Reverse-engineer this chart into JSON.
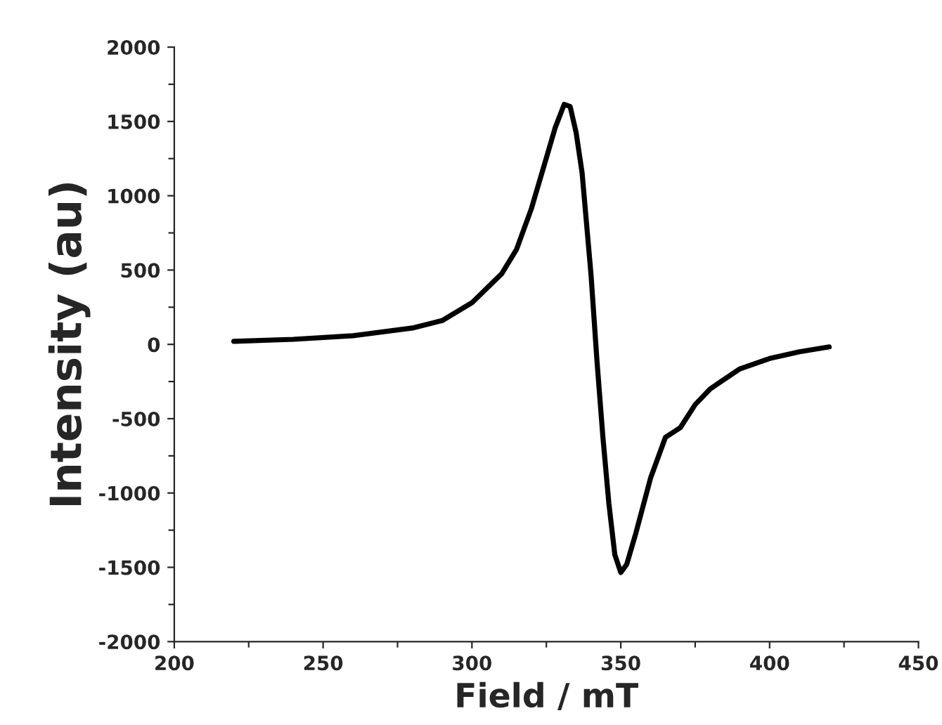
{
  "chart_data": {
    "type": "line",
    "xlabel": "Field / mT",
    "ylabel": "Intensity (au)",
    "xlim": [
      200,
      450
    ],
    "ylim": [
      -2000,
      2000
    ],
    "xticks": [
      200,
      {
        "value": 225,
        "label": null
      },
      250,
      {
        "value": 275,
        "label": null
      },
      300,
      {
        "value": 325,
        "label": null
      },
      350,
      {
        "value": 375,
        "label": null
      },
      400,
      {
        "value": 425,
        "label": null
      },
      450
    ],
    "yticks": [
      -2000,
      {
        "value": -1750,
        "label": null
      },
      -1500,
      {
        "value": -1250,
        "label": null
      },
      -1000,
      {
        "value": -750,
        "label": null
      },
      -500,
      {
        "value": -250,
        "label": null
      },
      0,
      {
        "value": 250,
        "label": null
      },
      500,
      {
        "value": 750,
        "label": null
      },
      1000,
      {
        "value": 1250,
        "label": null
      },
      1500,
      {
        "value": 1750,
        "label": null
      },
      2000
    ],
    "grid": false,
    "legend": false,
    "marker": "none",
    "line_style": "solid",
    "series": [
      {
        "color": "#000000",
        "x": [
          220,
          240,
          260,
          280,
          290,
          300,
          310,
          315,
          320,
          325,
          328,
          331,
          333,
          335,
          337,
          340,
          342,
          344,
          346,
          348,
          350,
          352,
          355,
          360,
          365,
          370,
          375,
          380,
          390,
          400,
          410,
          420
        ],
        "values": [
          20,
          34,
          58,
          110,
          160,
          280,
          475,
          640,
          915,
          1255,
          1460,
          1615,
          1600,
          1425,
          1155,
          470,
          -110,
          -625,
          -1070,
          -1415,
          -1535,
          -1480,
          -1275,
          -900,
          -625,
          -560,
          -405,
          -300,
          -165,
          -95,
          -50,
          -17
        ]
      }
    ]
  }
}
